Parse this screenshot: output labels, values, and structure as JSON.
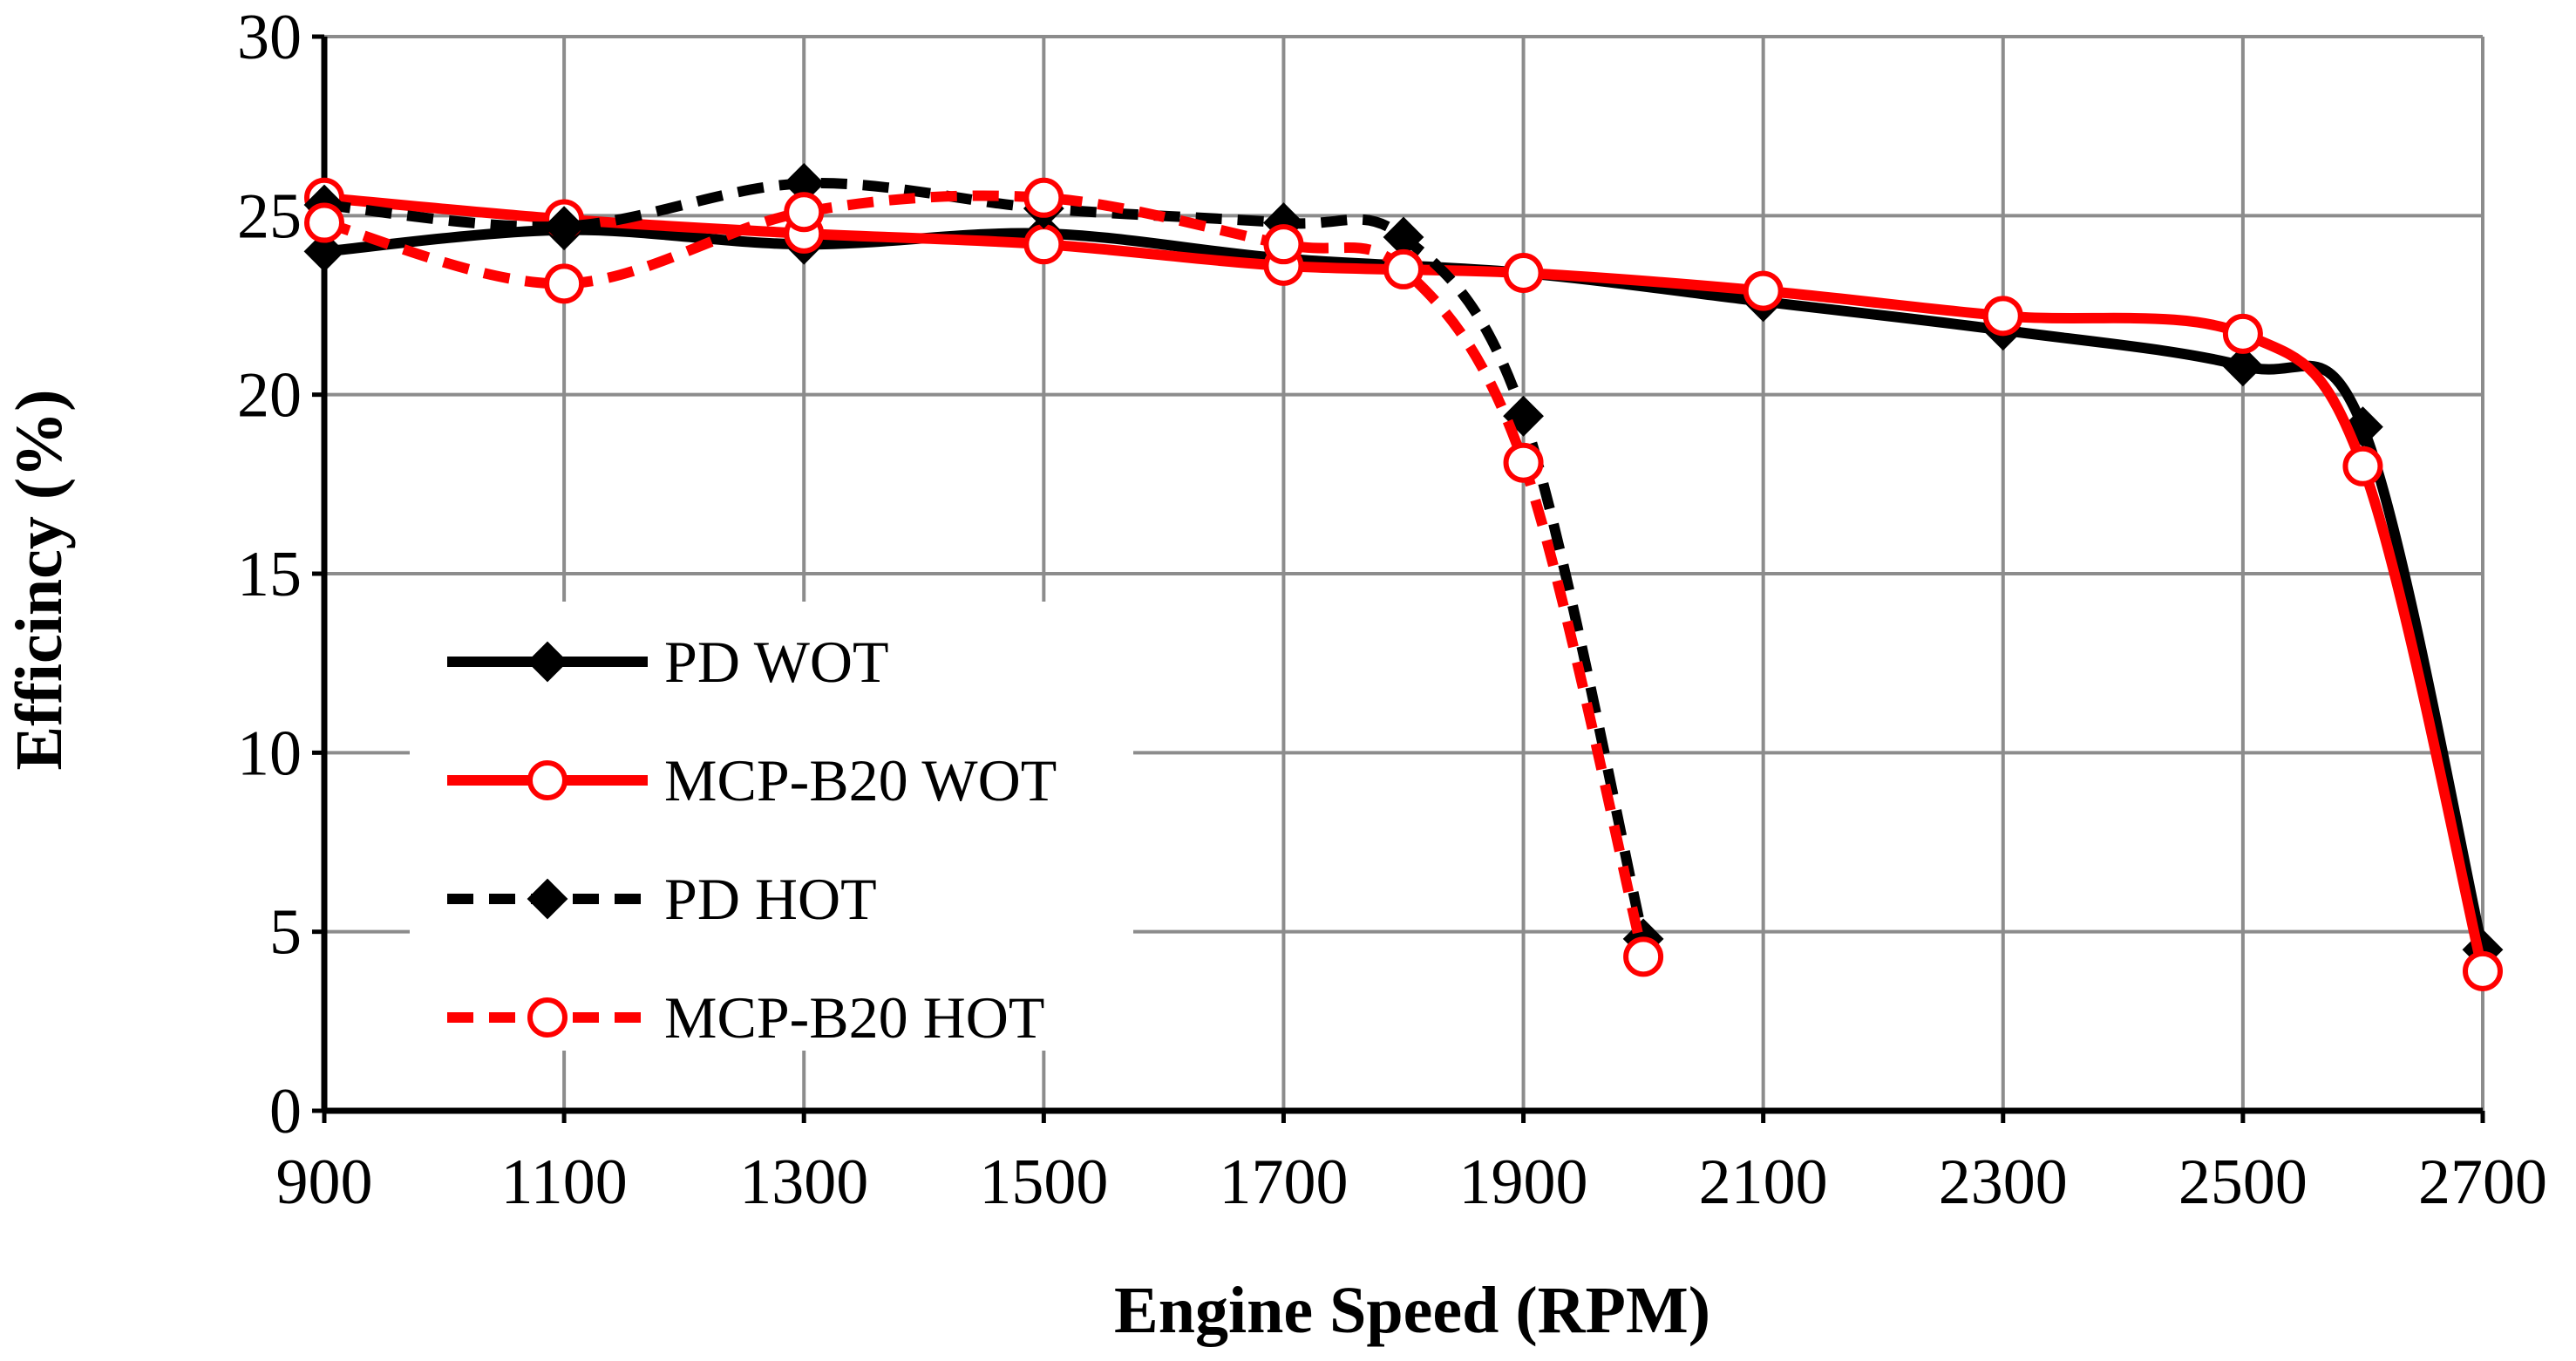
{
  "chart_data": {
    "type": "line",
    "title": "",
    "xlabel": "Engine Speed (RPM)",
    "ylabel": "Efficincy (%)",
    "xlim": [
      900,
      2700
    ],
    "ylim": [
      0,
      30
    ],
    "grid": true,
    "legend_position": "left-center",
    "x_ticks": [
      "900",
      "1100",
      "1300",
      "1500",
      "1700",
      "1900",
      "2100",
      "2300",
      "2500",
      "2700"
    ],
    "y_ticks": [
      "0",
      "5",
      "10",
      "15",
      "20",
      "25",
      "30"
    ],
    "series": [
      {
        "name": "PD WOT",
        "color": "#000000",
        "dashed": false,
        "marker": "diamond",
        "points": [
          [
            900,
            24.0
          ],
          [
            1100,
            24.6
          ],
          [
            1300,
            24.2
          ],
          [
            1500,
            24.5
          ],
          [
            1700,
            23.8
          ],
          [
            1900,
            23.4
          ],
          [
            2100,
            22.6
          ],
          [
            2300,
            21.8
          ],
          [
            2500,
            20.8
          ],
          [
            2600,
            19.1
          ],
          [
            2700,
            4.5
          ]
        ]
      },
      {
        "name": "MCP-B20 WOT",
        "color": "#ff0000",
        "dashed": false,
        "marker": "circle",
        "points": [
          [
            900,
            25.5
          ],
          [
            1100,
            24.9
          ],
          [
            1300,
            24.5
          ],
          [
            1500,
            24.2
          ],
          [
            1700,
            23.6
          ],
          [
            1900,
            23.4
          ],
          [
            2100,
            22.9
          ],
          [
            2300,
            22.2
          ],
          [
            2500,
            21.7
          ],
          [
            2600,
            18.0
          ],
          [
            2700,
            3.9
          ]
        ]
      },
      {
        "name": "PD HOT",
        "color": "#000000",
        "dashed": true,
        "marker": "diamond",
        "points": [
          [
            900,
            25.3
          ],
          [
            1100,
            24.7
          ],
          [
            1300,
            25.9
          ],
          [
            1500,
            25.2
          ],
          [
            1700,
            24.8
          ],
          [
            1800,
            24.4
          ],
          [
            1900,
            19.4
          ],
          [
            2000,
            4.8
          ]
        ]
      },
      {
        "name": "MCP-B20 HOT",
        "color": "#ff0000",
        "dashed": true,
        "marker": "circle",
        "points": [
          [
            900,
            24.8
          ],
          [
            1100,
            23.1
          ],
          [
            1300,
            25.1
          ],
          [
            1500,
            25.5
          ],
          [
            1700,
            24.2
          ],
          [
            1800,
            23.5
          ],
          [
            1900,
            18.1
          ],
          [
            2000,
            4.3
          ]
        ]
      }
    ]
  }
}
